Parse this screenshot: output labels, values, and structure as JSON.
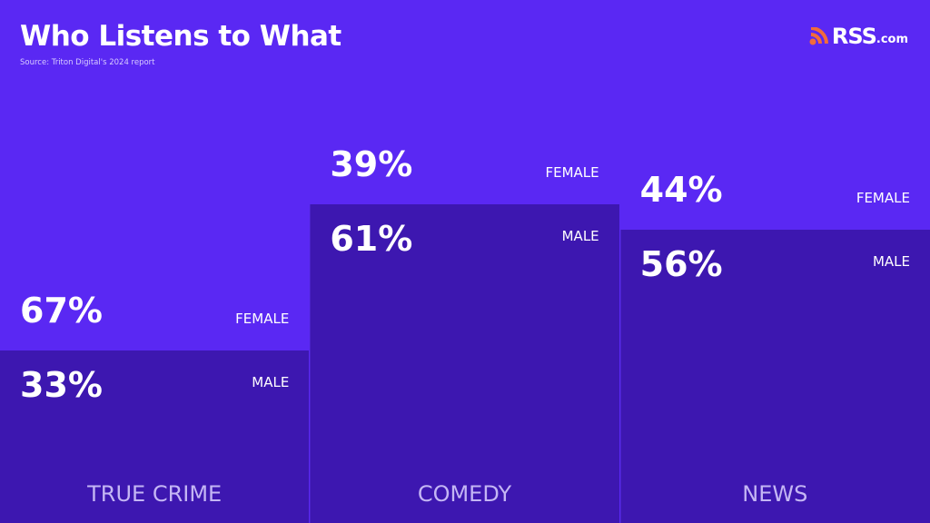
{
  "header": {
    "title": "Who Listens to What",
    "source": "Source: Triton Digital's 2024 report",
    "logo_main": "RSS",
    "logo_suffix": ".com"
  },
  "colors": {
    "female": "#5a28f3",
    "male": "#3d17b0",
    "logo": "#f26b3a"
  },
  "chart_data": {
    "type": "bar",
    "stacked": true,
    "title": "Who Listens to What",
    "categories": [
      "TRUE CRIME",
      "COMEDY",
      "NEWS"
    ],
    "series": [
      {
        "name": "FEMALE",
        "values": [
          67,
          39,
          44
        ],
        "labels": [
          "67%",
          "39%",
          "44%"
        ]
      },
      {
        "name": "MALE",
        "values": [
          33,
          61,
          56
        ],
        "labels": [
          "33%",
          "61%",
          "56%"
        ]
      }
    ],
    "ylim": [
      0,
      100
    ]
  }
}
